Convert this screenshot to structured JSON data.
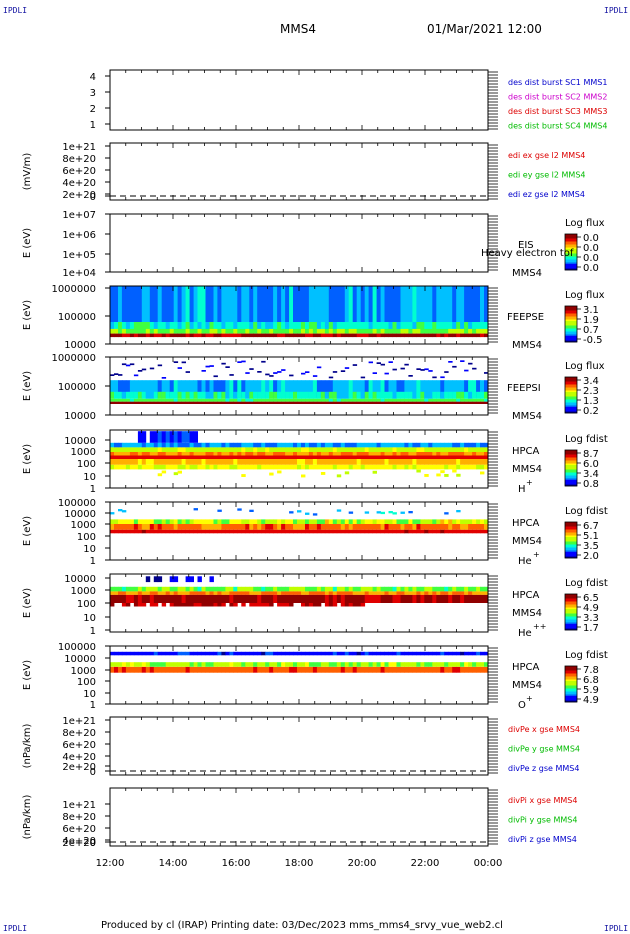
{
  "header": {
    "corner_label": "IPDLI",
    "spacecraft": "MMS4",
    "date_time": "01/Mar/2021 12:00"
  },
  "footer": {
    "text": "Produced by cl (IRAP)   Printing date: 03/Dec/2023   mms_mms4_srvy_vue_web2.cl"
  },
  "colors": {
    "blue": "#0000cc",
    "magenta": "#cc00cc",
    "red": "#dd0000",
    "green": "#00bb00",
    "black": "#000000"
  },
  "chart_data": [
    {
      "type": "line",
      "panel": "dist-burst",
      "ylabel": "",
      "ytick_labels": [
        "4",
        "3",
        "2",
        "1"
      ],
      "ylim": [
        0.5,
        4.5
      ],
      "series": [
        {
          "name": "des dist burst SC1 MMS1",
          "color": "#0000cc",
          "values": []
        },
        {
          "name": "des dist burst SC2 MMS2",
          "color": "#cc00cc",
          "values": []
        },
        {
          "name": "des dist burst SC3 MMS3",
          "color": "#dd0000",
          "values": []
        },
        {
          "name": "des dist burst SC4 MMS4",
          "color": "#00bb00",
          "values": []
        }
      ]
    },
    {
      "type": "line",
      "panel": "edi-e",
      "ylabel": "(mV/m)",
      "ytick_labels": [
        "1e+21",
        "8e+20",
        "6e+20",
        "4e+20",
        "2e+20",
        "0"
      ],
      "ylim": [
        0,
        1e+21
      ],
      "dashed_zero": true,
      "series": [
        {
          "name": "edi ex gse l2 MMS4",
          "color": "#dd0000",
          "values": []
        },
        {
          "name": "edi ey gse l2 MMS4",
          "color": "#00bb00",
          "values": []
        },
        {
          "name": "edi ez gse l2 MMS4",
          "color": "#0000cc",
          "values": []
        }
      ]
    },
    {
      "type": "heatmap",
      "panel": "eis",
      "ylabel": "E (eV)",
      "ytick_labels": [
        "1e+07",
        "1e+06",
        "1e+05",
        "1e+04"
      ],
      "ylim": [
        10000,
        10000000
      ],
      "yscale": "log",
      "right_labels": [
        "EIS",
        "Heavy electron tof",
        "MMS4"
      ],
      "colorbar": {
        "title": "Log flux",
        "ticks": [
          "0.0",
          "0.0",
          "0.0",
          "0.0"
        ]
      }
    },
    {
      "type": "heatmap",
      "panel": "feeps-e",
      "ylabel": "E (eV)",
      "ytick_labels": [
        "1000000",
        "100000",
        "10000"
      ],
      "ylim": [
        10000,
        1000000
      ],
      "yscale": "log",
      "right_labels": [
        "FEEPSE",
        "MMS4"
      ],
      "colorbar": {
        "title": "Log flux",
        "ticks": [
          "3.1",
          "1.9",
          "0.7",
          "-0.5"
        ]
      }
    },
    {
      "type": "heatmap",
      "panel": "feeps-i",
      "ylabel": "E (eV)",
      "ytick_labels": [
        "1000000",
        "100000",
        "10000"
      ],
      "ylim": [
        10000,
        1000000
      ],
      "yscale": "log",
      "right_labels": [
        "FEEPSI",
        "MMS4"
      ],
      "colorbar": {
        "title": "Log flux",
        "ticks": [
          "3.4",
          "2.3",
          "1.3",
          "0.2"
        ]
      }
    },
    {
      "type": "heatmap",
      "panel": "hpca-h",
      "ylabel": "E (eV)",
      "ytick_labels": [
        "10000",
        "1000",
        "100",
        "10",
        "1"
      ],
      "ylim": [
        1,
        30000
      ],
      "yscale": "log",
      "right_labels": [
        "HPCA",
        "MMS4",
        "H",
        "+"
      ],
      "colorbar": {
        "title": "Log fdist",
        "ticks": [
          "8.7",
          "6.0",
          "3.4",
          "0.8"
        ]
      }
    },
    {
      "type": "heatmap",
      "panel": "hpca-he",
      "ylabel": "E (eV)",
      "ytick_labels": [
        "100000",
        "10000",
        "1000",
        "100",
        "10",
        "1"
      ],
      "ylim": [
        1,
        100000
      ],
      "yscale": "log",
      "right_labels": [
        "HPCA",
        "MMS4",
        "He",
        "+"
      ],
      "colorbar": {
        "title": "Log fdist",
        "ticks": [
          "6.7",
          "5.1",
          "3.5",
          "2.0"
        ]
      }
    },
    {
      "type": "heatmap",
      "panel": "hpca-he2",
      "ylabel": "E (eV)",
      "ytick_labels": [
        "10000",
        "1000",
        "100",
        "10",
        "1"
      ],
      "ylim": [
        1,
        30000
      ],
      "yscale": "log",
      "right_labels": [
        "HPCA",
        "MMS4",
        "He",
        "++"
      ],
      "colorbar": {
        "title": "Log fdist",
        "ticks": [
          "6.5",
          "4.9",
          "3.3",
          "1.7"
        ]
      }
    },
    {
      "type": "heatmap",
      "panel": "hpca-o",
      "ylabel": "E (eV)",
      "ytick_labels": [
        "100000",
        "10000",
        "1000",
        "100",
        "10",
        "1"
      ],
      "ylim": [
        1,
        100000
      ],
      "yscale": "log",
      "right_labels": [
        "HPCA",
        "MMS4",
        "O",
        "+"
      ],
      "colorbar": {
        "title": "Log fdist",
        "ticks": [
          "7.8",
          "6.8",
          "5.9",
          "4.9"
        ]
      }
    },
    {
      "type": "line",
      "panel": "divpe",
      "ylabel": "(nPa/km)",
      "ytick_labels": [
        "1e+21",
        "8e+20",
        "6e+20",
        "4e+20",
        "2e+20",
        "0"
      ],
      "ylim": [
        0,
        1e+21
      ],
      "dashed_zero": true,
      "series": [
        {
          "name": "divPe x gse MMS4",
          "color": "#dd0000",
          "values": []
        },
        {
          "name": "divPe y gse MMS4",
          "color": "#00bb00",
          "values": []
        },
        {
          "name": "divPe z gse MMS4",
          "color": "#0000cc",
          "values": []
        }
      ]
    },
    {
      "type": "line",
      "panel": "divpi",
      "ylabel": "(nPa/km)",
      "ytick_labels": [
        "1e+21",
        "8e+20",
        "6e+20",
        "4e+20",
        "2e+20",
        "0"
      ],
      "ylim": [
        0,
        1e+21
      ],
      "dashed_zero": true,
      "series": [
        {
          "name": "divPi x gse MMS4",
          "color": "#dd0000",
          "values": []
        },
        {
          "name": "divPi y gse MMS4",
          "color": "#00bb00",
          "values": []
        },
        {
          "name": "divPi z gse MMS4",
          "color": "#0000cc",
          "values": []
        }
      ]
    }
  ],
  "x_axis": {
    "tick_labels": [
      "12:00",
      "14:00",
      "16:00",
      "18:00",
      "20:00",
      "22:00",
      "00:00"
    ]
  }
}
